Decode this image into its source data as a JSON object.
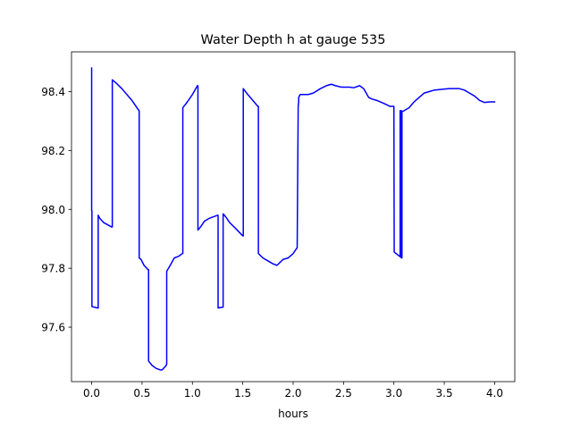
{
  "chart_data": {
    "type": "line",
    "title": "Water Depth h at gauge 535",
    "xlabel": "hours",
    "ylabel": "",
    "xlim": [
      -0.2,
      4.2
    ],
    "ylim": [
      97.415,
      98.535
    ],
    "xticks": [
      0.0,
      0.5,
      1.0,
      1.5,
      2.0,
      2.5,
      3.0,
      3.5,
      4.0
    ],
    "xtick_labels": [
      "0.0",
      "0.5",
      "1.0",
      "1.5",
      "2.0",
      "2.5",
      "3.0",
      "3.5",
      "4.0"
    ],
    "yticks": [
      97.6,
      97.8,
      98.0,
      98.2,
      98.4
    ],
    "ytick_labels": [
      "97.6",
      "97.8",
      "98.0",
      "98.2",
      "98.4"
    ],
    "grid": false,
    "legend": "none",
    "series": [
      {
        "color": "#0000ff",
        "x": [
          0.0,
          0.0,
          0.003,
          0.003,
          0.06,
          0.065,
          0.065,
          0.08,
          0.12,
          0.2,
          0.205,
          0.205,
          0.24,
          0.3,
          0.4,
          0.47,
          0.472,
          0.472,
          0.49,
          0.52,
          0.56,
          0.565,
          0.565,
          0.6,
          0.64,
          0.68,
          0.7,
          0.74,
          0.745,
          0.745,
          0.78,
          0.82,
          0.86,
          0.9,
          0.905,
          0.905,
          0.95,
          1.0,
          1.05,
          1.055,
          1.055,
          1.08,
          1.12,
          1.17,
          1.25,
          1.255,
          1.255,
          1.3,
          1.305,
          1.305,
          1.33,
          1.37,
          1.4,
          1.43,
          1.5,
          1.505,
          1.505,
          1.55,
          1.6,
          1.65,
          1.655,
          1.655,
          1.7,
          1.75,
          1.8,
          1.84,
          1.87,
          1.9,
          1.95,
          2.0,
          2.04,
          2.05,
          2.055,
          2.055,
          2.07,
          2.1,
          2.15,
          2.2,
          2.27,
          2.33,
          2.38,
          2.42,
          2.48,
          2.56,
          2.6,
          2.66,
          2.7,
          2.75,
          2.78,
          2.83,
          2.9,
          2.96,
          3.0,
          3.003,
          3.003,
          3.06,
          3.062,
          3.062,
          3.065,
          3.065,
          3.07,
          3.07,
          3.075,
          3.075,
          3.08,
          3.08,
          3.1,
          3.15,
          3.2,
          3.25,
          3.3,
          3.35,
          3.4,
          3.48,
          3.55,
          3.6,
          3.65,
          3.7,
          3.75,
          3.8,
          3.85,
          3.9,
          3.95,
          4.0
        ],
        "y": [
          98.48,
          97.995,
          97.995,
          97.67,
          97.665,
          97.665,
          97.98,
          97.97,
          97.955,
          97.94,
          97.94,
          98.44,
          98.43,
          98.41,
          98.37,
          98.335,
          98.335,
          97.835,
          97.83,
          97.81,
          97.795,
          97.795,
          97.485,
          97.47,
          97.46,
          97.455,
          97.455,
          97.47,
          97.475,
          97.79,
          97.81,
          97.835,
          97.84,
          97.85,
          97.85,
          98.345,
          98.365,
          98.39,
          98.42,
          98.42,
          97.93,
          97.94,
          97.96,
          97.97,
          97.98,
          97.98,
          97.665,
          97.668,
          97.668,
          97.985,
          97.975,
          97.955,
          97.945,
          97.935,
          97.91,
          97.91,
          98.41,
          98.39,
          98.37,
          98.35,
          98.35,
          97.85,
          97.835,
          97.825,
          97.815,
          97.81,
          97.82,
          97.83,
          97.835,
          97.85,
          97.87,
          98.35,
          98.365,
          98.38,
          98.39,
          98.39,
          98.39,
          98.395,
          98.41,
          98.42,
          98.425,
          98.42,
          98.415,
          98.415,
          98.413,
          98.42,
          98.41,
          98.38,
          98.375,
          98.37,
          98.36,
          98.35,
          98.35,
          97.855,
          97.855,
          97.84,
          97.84,
          98.335,
          98.335,
          97.838,
          97.838,
          98.335,
          98.335,
          97.835,
          97.835,
          98.332,
          98.335,
          98.345,
          98.365,
          98.38,
          98.395,
          98.4,
          98.405,
          98.408,
          98.41,
          98.41,
          98.41,
          98.405,
          98.395,
          98.385,
          98.37,
          98.363,
          98.365,
          98.365
        ]
      }
    ]
  }
}
